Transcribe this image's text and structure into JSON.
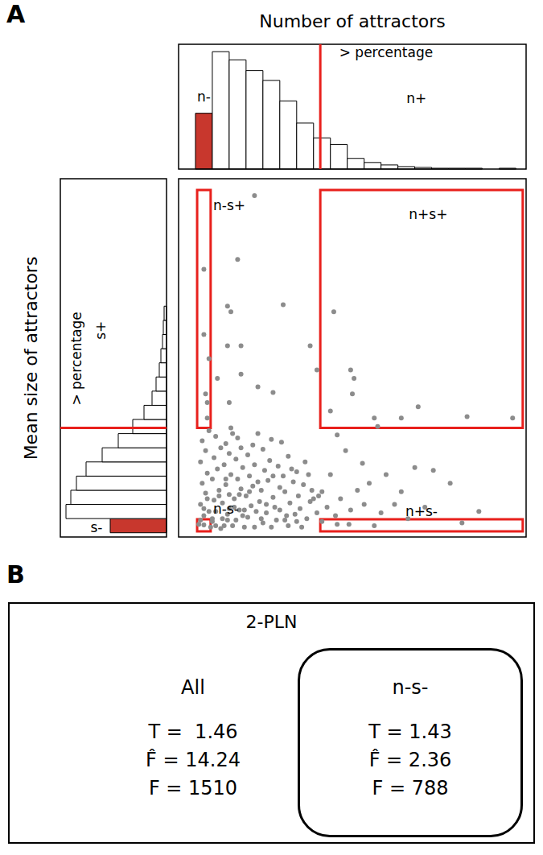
{
  "panel_labels": [
    "A",
    "B"
  ],
  "chart_data": [
    {
      "type": "histogram",
      "title": "Number of attractors",
      "bins": [
        1,
        2,
        3,
        4,
        5,
        6,
        7,
        8,
        9,
        10,
        11,
        12,
        13,
        14,
        15,
        16,
        17,
        18,
        19,
        20
      ],
      "counts": [
        68,
        143,
        133,
        120,
        108,
        83,
        56,
        38,
        30,
        13,
        8,
        5,
        3,
        2,
        1,
        1,
        1,
        0,
        1
      ],
      "colors": [
        "#c8372d",
        "#ffffff",
        "#ffffff",
        "#ffffff",
        "#ffffff",
        "#ffffff",
        "#ffffff",
        "#ffffff",
        "#ffffff",
        "#ffffff",
        "#ffffff",
        "#ffffff",
        "#ffffff",
        "#ffffff",
        "#ffffff",
        "#ffffff",
        "#ffffff",
        "#ffffff",
        "#ffffff"
      ],
      "xlim": [
        0,
        20.6
      ],
      "ylim": [
        0,
        152
      ],
      "tick_labels": false,
      "threshold": 8.4,
      "annotations": [
        {
          "text": "n-",
          "x": 1.5,
          "y": 88
        },
        {
          "text": "> percentage",
          "x": 12.3,
          "y": 142
        },
        {
          "text": "n+",
          "x": 14.1,
          "y": 86
        }
      ]
    },
    {
      "type": "histogram",
      "orientation": "horizontal",
      "ylabel": "Mean size of attractors",
      "bins": [
        0,
        1,
        2,
        3,
        4,
        5,
        6,
        7,
        8,
        9,
        10,
        11,
        12,
        13,
        14,
        15,
        16
      ],
      "counts": [
        70,
        125,
        119,
        112,
        100,
        80,
        60,
        42,
        28,
        18,
        13,
        9,
        7,
        5,
        4,
        3
      ],
      "colors": [
        "#c8372d",
        "#ffffff",
        "#ffffff",
        "#ffffff",
        "#ffffff",
        "#ffffff",
        "#ffffff",
        "#ffffff",
        "#ffffff",
        "#ffffff",
        "#ffffff",
        "#ffffff",
        "#ffffff",
        "#ffffff",
        "#ffffff",
        "#ffffff"
      ],
      "xlim": [
        0,
        132
      ],
      "ylim": [
        -0.3,
        25
      ],
      "tick_labels": false,
      "threshold": 7.4,
      "annotations": [
        {
          "text": "> percentage",
          "x": 112,
          "y": 12.3
        },
        {
          "text": "s+",
          "x": 82,
          "y": 14.3
        },
        {
          "text": "s-",
          "x": 87,
          "y": 0.4
        }
      ]
    },
    {
      "type": "scatter",
      "color": "#8c8c8c",
      "marker": "circle",
      "xlim": [
        0,
        20.6
      ],
      "ylim": [
        -0.3,
        25
      ],
      "tick_labels": false,
      "x": [
        4.5,
        3.5,
        1.5,
        2.9,
        3.1,
        6.2,
        9.2,
        1.5,
        2.9,
        3.7,
        1.8,
        7.8,
        10.2,
        10.4,
        10.3,
        17.1,
        19.8,
        14.2,
        13.2,
        11.6,
        9.0,
        8.2,
        3.7,
        4.7,
        5.6,
        1.6,
        1.7,
        2.3,
        1.7,
        3.0,
        11.8,
        14.0,
        15.1,
        16.1,
        17.8,
        16.8,
        9.4,
        10.1,
        11.6,
        11.3,
        12.3,
        13.2,
        10.9,
        9.9,
        9.4,
        9.0,
        8.5,
        8.0,
        1.5,
        1.2,
        1.5,
        1.3,
        1.6,
        1.4,
        1.7,
        1.3,
        1.6,
        1.4,
        1.8,
        2.0,
        2.2,
        2.1,
        2.4,
        2.0,
        2.3,
        2.1,
        2.5,
        2.2,
        2.0,
        2.7,
        2.9,
        2.6,
        3.0,
        2.8,
        3.1,
        2.7,
        3.0,
        2.8,
        3.2,
        3.4,
        3.6,
        3.3,
        3.7,
        3.5,
        3.8,
        3.4,
        3.7,
        3.5,
        3.9,
        4.1,
        4.3,
        4.0,
        4.4,
        4.2,
        4.5,
        4.1,
        4.4,
        4.6,
        4.8,
        5.0,
        5.2,
        4.9,
        5.3,
        5.1,
        5.4,
        5.0,
        5.6,
        5.8,
        5.7,
        6.0,
        6.2,
        5.9,
        6.4,
        6.6,
        6.3,
        6.8,
        6.5,
        7.0,
        7.2,
        7.1,
        7.4,
        7.0,
        7.6,
        7.8,
        7.5,
        6.1,
        4.7,
        5.5,
        3.1,
        1.9,
        2.5,
        3.2,
        4.5,
        5.5,
        6.5,
        1.5,
        2.6,
        3.8,
        4.9,
        6.9,
        8.2,
        8.5,
        7.9,
        8.3,
        8.8,
        9.3,
        9.6,
        10.2,
        10.6,
        11.0,
        12.0,
        12.8,
        13.6,
        14.6,
        1.8,
        2.4,
        3.3,
        4.2,
        5.2,
        6.0,
        6.7,
        7.3,
        2.9,
        3.6,
        1.3,
        2.2,
        3.0,
        3.9,
        4.7,
        5.6,
        6.3,
        7.7,
        1.7,
        2.8
      ],
      "y": [
        23.8,
        19.3,
        18.6,
        16.0,
        15.6,
        16.1,
        15.6,
        14.0,
        13.2,
        13.2,
        12.3,
        13.2,
        11.5,
        10.9,
        9.8,
        8.2,
        8.1,
        8.9,
        8.1,
        8.1,
        8.6,
        11.5,
        11.2,
        10.3,
        9.9,
        9.8,
        9.2,
        10.9,
        8.1,
        9.2,
        7.5,
        4.6,
        4.4,
        3.5,
        1.5,
        0.7,
        0.6,
        0.6,
        0.5,
        3.5,
        4.1,
        2.9,
        4.9,
        5.8,
        6.9,
        4.1,
        2.9,
        2.4,
        0.55,
        0.6,
        1.2,
        2.0,
        2.8,
        3.5,
        4.2,
        5.0,
        5.8,
        6.5,
        7.2,
        0.8,
        1.5,
        2.3,
        3.0,
        3.8,
        4.5,
        5.3,
        6.0,
        6.8,
        1.0,
        0.5,
        1.3,
        2.1,
        2.7,
        3.4,
        4.1,
        4.8,
        5.6,
        6.3,
        7.0,
        0.9,
        1.6,
        2.4,
        3.1,
        3.8,
        4.6,
        5.2,
        6.0,
        6.7,
        0.4,
        1.1,
        1.9,
        2.6,
        3.3,
        4.0,
        4.8,
        5.5,
        6.2,
        1.5,
        2.2,
        0.7,
        1.4,
        3.0,
        3.7,
        4.4,
        5.1,
        5.9,
        2.5,
        0.9,
        1.8,
        3.2,
        4.0,
        4.7,
        1.2,
        2.1,
        2.9,
        3.6,
        5.4,
        0.8,
        1.7,
        2.6,
        3.4,
        4.3,
        1.0,
        2.2,
        5.0,
        6.4,
        7.0,
        6.6,
        7.4,
        0.4,
        0.3,
        0.5,
        0.4,
        0.4,
        0.5,
        1.7,
        1.0,
        1.2,
        1.0,
        1.3,
        1.4,
        0.8,
        3.0,
        2.6,
        1.8,
        1.2,
        2.4,
        1.6,
        3.0,
        2.0,
        1.4,
        2.0,
        1.0,
        1.8,
        1.5,
        2.6,
        1.8,
        2.9,
        2.0,
        1.6,
        4.5,
        0.4,
        0.9,
        2.7,
        0.9,
        0.5,
        1.7,
        1.6,
        3.6,
        4.0,
        0.9,
        4.1,
        2.4,
        3.8
      ],
      "regions": [
        {
          "label": "n-s+",
          "x": [
            1.1,
            1.9
          ],
          "y": [
            7.4,
            24.2
          ],
          "label_x": 2.05,
          "label_y": 23.1
        },
        {
          "label": "n+s+",
          "x": [
            8.4,
            20.4
          ],
          "y": [
            7.4,
            24.2
          ],
          "label_x": 14.8,
          "label_y": 22.5
        },
        {
          "label": "n-s-",
          "x": [
            1.1,
            1.9
          ],
          "y": [
            0.1,
            0.95
          ],
          "label_x": 2.05,
          "label_y": 1.7
        },
        {
          "label": "n+s-",
          "x": [
            8.4,
            20.4
          ],
          "y": [
            0.1,
            0.95
          ],
          "label_x": 14.4,
          "label_y": 1.5
        }
      ]
    }
  ],
  "panel_b": {
    "title": "2-PLN",
    "groups": [
      {
        "label": "All",
        "lines": [
          "T =  1.46",
          "F̂ = 14.24",
          "F = 1510"
        ]
      },
      {
        "label": "n-s-",
        "lines": [
          "T = 1.43",
          "F̂ = 2.36",
          "F = 788"
        ]
      }
    ]
  }
}
